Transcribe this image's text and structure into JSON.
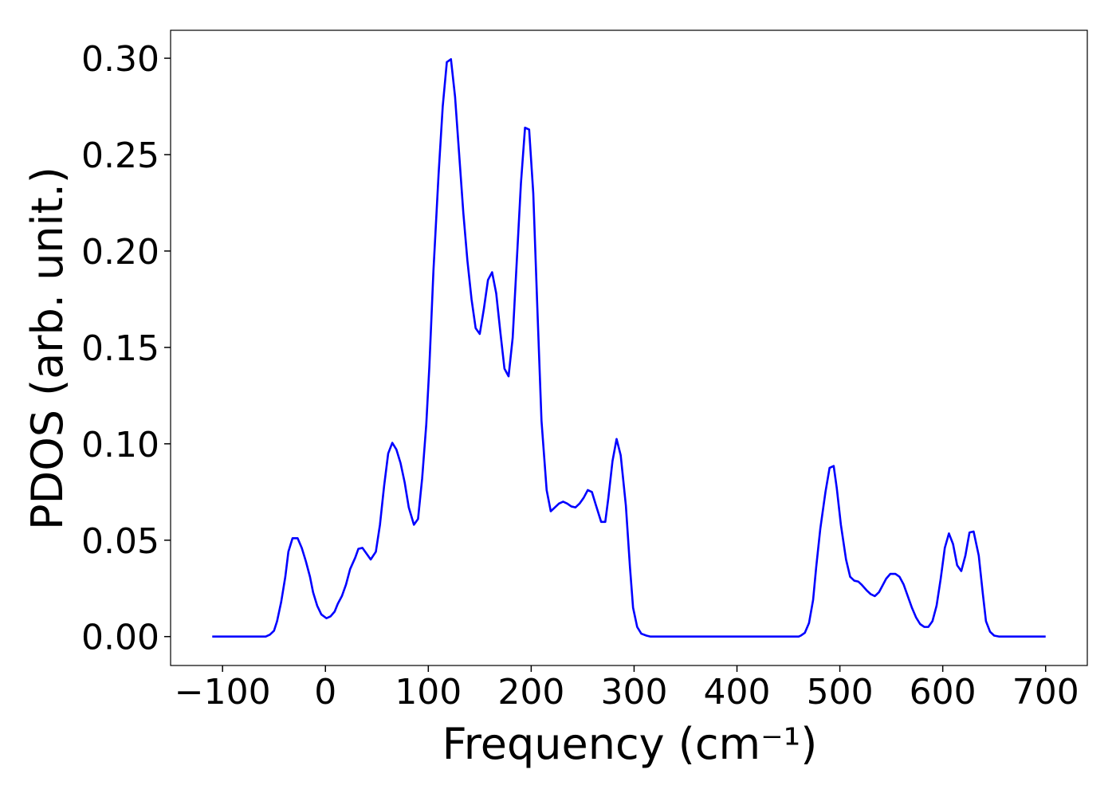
{
  "chart_data": {
    "type": "line",
    "xlabel": "Frequency (cm⁻¹)",
    "ylabel": "PDOS (arb. unit.)",
    "xlim": [
      -150.5,
      740.5
    ],
    "ylim": [
      -0.015,
      0.3145
    ],
    "xticks": [
      {
        "value": -100,
        "label": "−100"
      },
      0,
      100,
      200,
      300,
      400,
      500,
      600,
      700
    ],
    "yticks": [
      {
        "value": 0,
        "label": "0.00"
      },
      {
        "value": 0.05,
        "label": "0.05"
      },
      {
        "value": 0.1,
        "label": "0.10"
      },
      {
        "value": 0.15,
        "label": "0.15"
      },
      {
        "value": 0.2,
        "label": "0.20"
      },
      {
        "value": 0.25,
        "label": "0.25"
      },
      {
        "value": 0.3,
        "label": "0.30"
      }
    ],
    "grid": false,
    "series": [
      {
        "color": "#0000ff",
        "x": [
          -110,
          -58,
          -54,
          -50,
          -47,
          -43,
          -39,
          -36,
          -32,
          -27,
          -23,
          -19,
          -15,
          -12,
          -8,
          -4,
          1,
          5,
          9,
          12,
          16,
          20,
          24,
          29,
          32,
          36,
          40,
          44,
          49,
          53,
          57,
          61,
          65,
          69,
          73,
          77,
          81,
          86,
          90,
          94,
          98,
          101,
          105,
          110,
          114,
          118,
          122,
          126,
          130,
          134,
          138,
          142,
          146,
          150,
          154,
          158,
          162,
          166,
          170,
          174,
          178,
          182,
          186,
          190,
          194,
          198,
          202,
          206,
          210,
          215,
          219,
          223,
          227,
          231,
          235,
          239,
          243,
          247,
          251,
          255,
          259,
          263,
          268,
          272,
          275,
          279,
          283,
          287,
          292,
          296,
          299,
          303,
          307,
          312,
          316,
          460,
          462,
          466,
          470,
          474,
          477,
          481,
          486,
          490,
          494,
          497,
          501,
          506,
          510,
          514,
          518,
          521,
          526,
          530,
          534,
          538,
          541,
          545,
          549,
          554,
          558,
          562,
          566,
          570,
          574,
          578,
          582,
          586,
          590,
          594,
          598,
          602,
          606,
          610,
          614,
          618,
          622,
          626,
          630,
          635,
          639,
          642,
          646,
          650,
          655,
          700
        ],
        "values": [
          0,
          0,
          0.001,
          0.003,
          0.008,
          0.018,
          0.031,
          0.044,
          0.051,
          0.051,
          0.046,
          0.039,
          0.031,
          0.023,
          0.016,
          0.0115,
          0.0095,
          0.0105,
          0.013,
          0.017,
          0.021,
          0.027,
          0.035,
          0.041,
          0.0455,
          0.046,
          0.043,
          0.04,
          0.044,
          0.058,
          0.078,
          0.095,
          0.1005,
          0.097,
          0.09,
          0.08,
          0.067,
          0.058,
          0.061,
          0.082,
          0.11,
          0.14,
          0.19,
          0.24,
          0.275,
          0.298,
          0.2995,
          0.28,
          0.25,
          0.22,
          0.195,
          0.175,
          0.16,
          0.157,
          0.17,
          0.185,
          0.189,
          0.178,
          0.158,
          0.139,
          0.135,
          0.155,
          0.195,
          0.235,
          0.264,
          0.263,
          0.23,
          0.17,
          0.112,
          0.076,
          0.065,
          0.067,
          0.069,
          0.07,
          0.069,
          0.0675,
          0.067,
          0.069,
          0.072,
          0.076,
          0.075,
          0.068,
          0.0595,
          0.0595,
          0.072,
          0.091,
          0.1025,
          0.094,
          0.068,
          0.036,
          0.015,
          0.005,
          0.0015,
          0.0005,
          0,
          0,
          0.0005,
          0.002,
          0.007,
          0.019,
          0.036,
          0.056,
          0.075,
          0.0875,
          0.0885,
          0.077,
          0.058,
          0.04,
          0.031,
          0.029,
          0.0285,
          0.027,
          0.024,
          0.022,
          0.021,
          0.023,
          0.026,
          0.03,
          0.0325,
          0.0325,
          0.031,
          0.027,
          0.021,
          0.015,
          0.01,
          0.0065,
          0.005,
          0.005,
          0.008,
          0.016,
          0.03,
          0.046,
          0.0535,
          0.048,
          0.037,
          0.034,
          0.042,
          0.054,
          0.0545,
          0.042,
          0.022,
          0.008,
          0.0025,
          0.0005,
          0,
          0
        ]
      }
    ]
  }
}
